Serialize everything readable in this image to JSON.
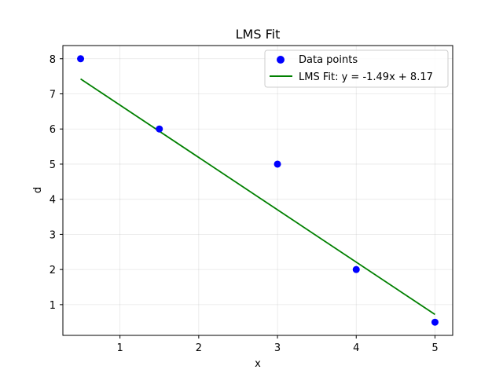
{
  "chart_data": {
    "type": "scatter",
    "title": "LMS Fit",
    "xlabel": "x",
    "ylabel": "d",
    "xlim": [
      0.275,
      5.225
    ],
    "ylim": [
      0.125,
      8.375
    ],
    "xticks": [
      1,
      2,
      3,
      4,
      5
    ],
    "yticks": [
      1,
      2,
      3,
      4,
      5,
      6,
      7,
      8
    ],
    "grid": true,
    "legend_position": "top-right",
    "series": [
      {
        "name": "Data points",
        "kind": "scatter",
        "color": "#0000ff",
        "x": [
          0.5,
          1.5,
          3,
          4,
          5
        ],
        "y": [
          8,
          6,
          5,
          2,
          0.5
        ]
      },
      {
        "name": "LMS Fit: y = -1.49x + 8.17",
        "kind": "line",
        "color": "#008000",
        "slope": -1.49,
        "intercept": 8.17,
        "x": [
          0.5,
          5
        ]
      }
    ]
  }
}
